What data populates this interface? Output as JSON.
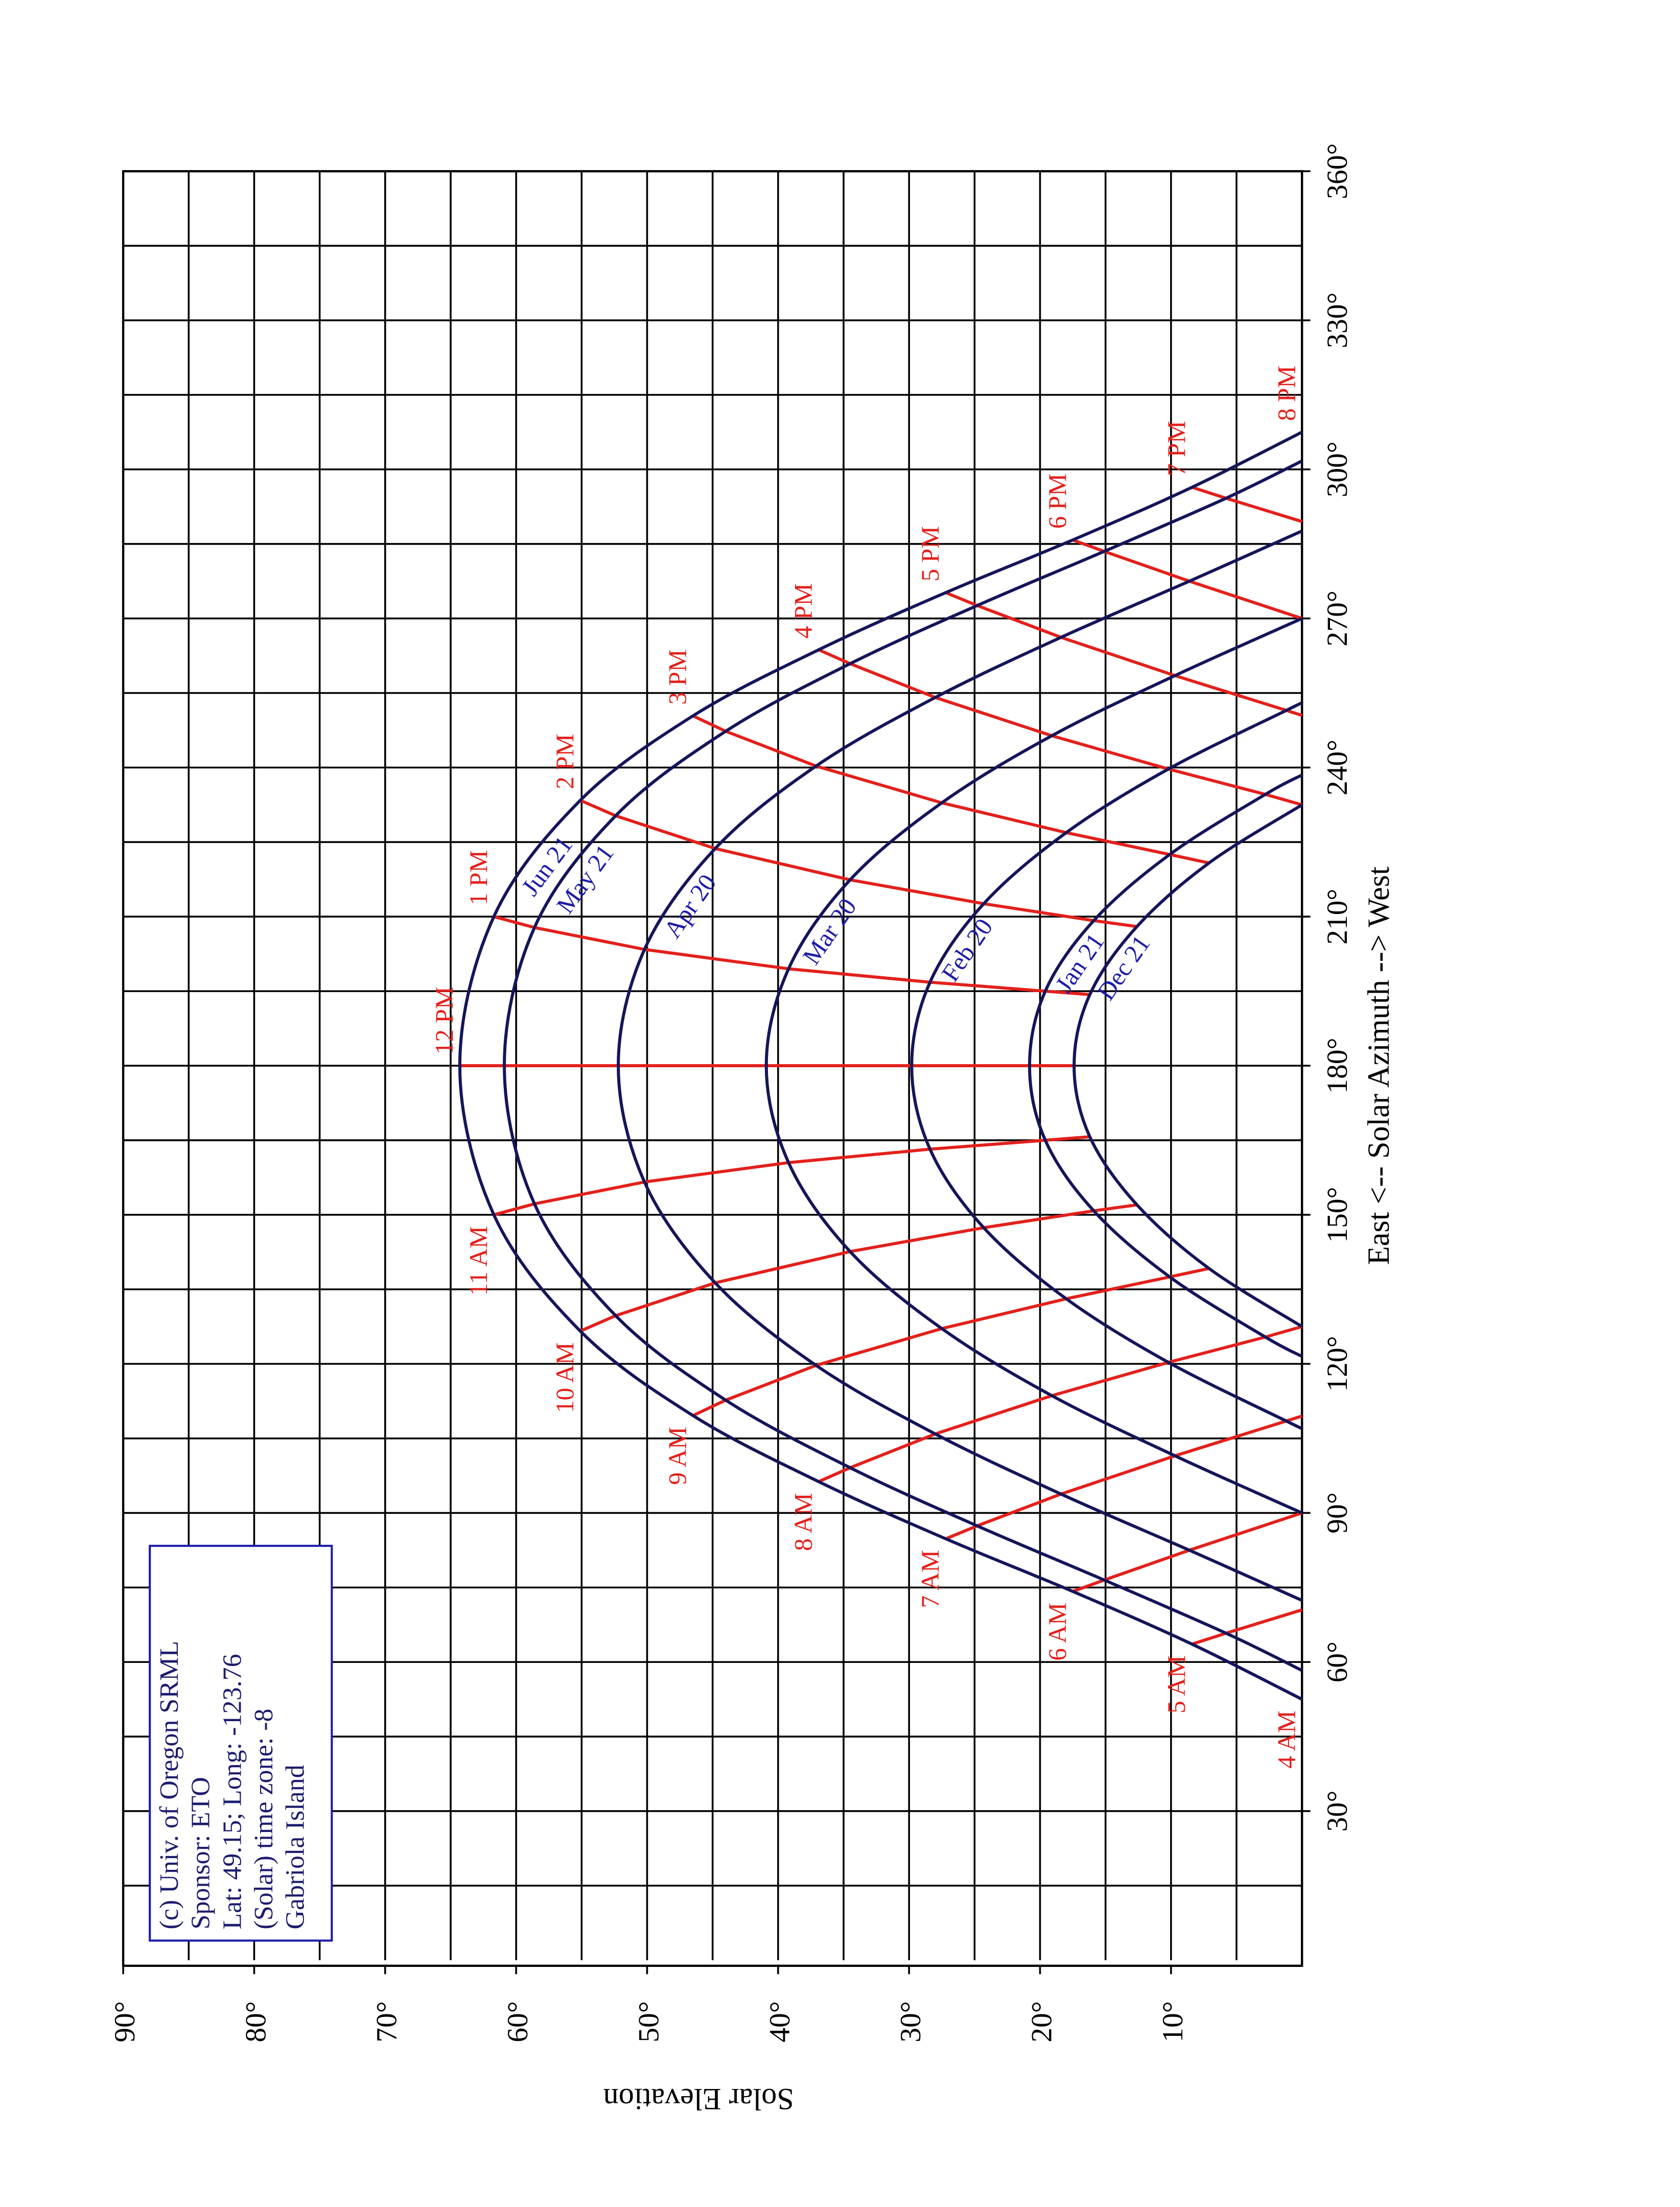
{
  "chart_data": {
    "type": "line",
    "x_label": "East <-- Solar Azimuth --> West",
    "y_label": "Solar Elevation",
    "xlim": [
      0,
      360
    ],
    "ylim": [
      0,
      90
    ],
    "xticks": [
      {
        "value": 30,
        "label": "30°"
      },
      {
        "value": 60,
        "label": "60°"
      },
      {
        "value": 90,
        "label": "90°"
      },
      {
        "value": 120,
        "label": "120°"
      },
      {
        "value": 150,
        "label": "150°"
      },
      {
        "value": 180,
        "label": "180°"
      },
      {
        "value": 210,
        "label": "210°"
      },
      {
        "value": 240,
        "label": "240°"
      },
      {
        "value": 270,
        "label": "270°"
      },
      {
        "value": 300,
        "label": "300°"
      },
      {
        "value": 330,
        "label": "330°"
      },
      {
        "value": 360,
        "label": "360°"
      }
    ],
    "yticks": [
      {
        "value": 10,
        "label": "10°"
      },
      {
        "value": 20,
        "label": "20°"
      },
      {
        "value": 30,
        "label": "30°"
      },
      {
        "value": 40,
        "label": "40°"
      },
      {
        "value": 50,
        "label": "50°"
      },
      {
        "value": 60,
        "label": "60°"
      },
      {
        "value": 70,
        "label": "70°"
      },
      {
        "value": 80,
        "label": "80°"
      },
      {
        "value": 90,
        "label": "90°"
      }
    ],
    "xminorticks": [
      15,
      30,
      45,
      60,
      75,
      90,
      105,
      120,
      135,
      150,
      165,
      180,
      195,
      210,
      225,
      240,
      255,
      270,
      285,
      300,
      315,
      330,
      345
    ],
    "yminorticks": [
      5,
      10,
      15,
      20,
      25,
      30,
      35,
      40,
      45,
      50,
      55,
      60,
      65,
      70,
      75,
      80,
      85
    ],
    "grid": true,
    "series": [
      {
        "name": "Jun 21",
        "color": "#15155a",
        "x": [
          52.5,
          63.6,
          74.2,
          84.8,
          96.3,
          109.6,
          126.6,
          150.0,
          180,
          210.0,
          233.4,
          250.4,
          263.7,
          275.2,
          285.8,
          296.4,
          307.5
        ],
        "y": [
          0,
          8.4,
          17.5,
          27.2,
          36.9,
          46.5,
          55.1,
          61.7,
          64.3,
          61.7,
          55.1,
          46.5,
          36.9,
          27.2,
          17.5,
          8.4,
          0
        ]
      },
      {
        "name": "May 21",
        "color": "#15155a",
        "x": [
          58.3,
          65.8,
          76.5,
          87.4,
          99.1,
          112.7,
          129.7,
          152.2,
          180,
          207.8,
          230.3,
          247.3,
          260.9,
          272.6,
          283.5,
          294.2,
          301.7
        ],
        "y": [
          0,
          5.8,
          15.1,
          24.8,
          34.5,
          44.0,
          52.4,
          58.6,
          60.9,
          58.6,
          52.4,
          44.0,
          34.5,
          24.8,
          15.1,
          5.8,
          0
        ]
      },
      {
        "name": "Apr 20",
        "color": "#15155a",
        "x": [
          72.4,
          82.5,
          93.8,
          105.9,
          119.7,
          136.3,
          156.6,
          180,
          203.4,
          223.7,
          240.3,
          254.1,
          266.2,
          277.5,
          287.6
        ],
        "y": [
          0,
          8.6,
          18.4,
          28.0,
          37.1,
          44.8,
          50.2,
          52.2,
          50.2,
          44.8,
          37.1,
          28.0,
          18.4,
          8.6,
          0
        ]
      },
      {
        "name": "Mar 20",
        "color": "#15155a",
        "x": [
          90,
          101.5,
          113.6,
          127.1,
          142.6,
          160.5,
          180,
          199.5,
          217.4,
          232.9,
          246.4,
          258.5,
          270
        ],
        "y": [
          0,
          9.7,
          19.1,
          27.5,
          34.5,
          39.2,
          40.9,
          39.2,
          34.5,
          27.5,
          19.1,
          9.7,
          0
        ]
      },
      {
        "name": "Feb 20",
        "color": "#15155a",
        "x": [
          107.0,
          108.5,
          120.3,
          133.1,
          147.4,
          163.2,
          180,
          196.8,
          212.6,
          226.9,
          239.7,
          251.5,
          253.0
        ],
        "y": [
          0,
          1.2,
          10.2,
          18.0,
          24.3,
          28.4,
          29.8,
          28.4,
          24.3,
          18.0,
          10.2,
          1.2,
          0
        ]
      },
      {
        "name": "Jan 21",
        "color": "#15155a",
        "x": [
          121.5,
          125.4,
          137.5,
          150.8,
          165.0,
          180,
          195.0,
          209.2,
          222.5,
          234.6,
          238.5
        ],
        "y": [
          0,
          2.8,
          10.1,
          15.9,
          19.6,
          20.8,
          19.6,
          15.9,
          10.1,
          2.8,
          0
        ]
      },
      {
        "name": "Dec 21",
        "color": "#15155a",
        "x": [
          127.5,
          139.2,
          152.0,
          165.7,
          180,
          194.3,
          208.0,
          220.8,
          232.5
        ],
        "y": [
          0,
          7.1,
          12.6,
          16.2,
          17.4,
          16.2,
          12.6,
          7.1,
          0
        ]
      }
    ],
    "hour_lines": [
      {
        "name": "4 AM",
        "color": "#e3201b",
        "x": [
          52.5
        ],
        "y": [
          0
        ]
      },
      {
        "name": "5 AM",
        "color": "#e3201b",
        "x": [
          63.6,
          65.8,
          70.5
        ],
        "y": [
          8.4,
          5.8,
          0
        ]
      },
      {
        "name": "6 AM",
        "color": "#e3201b",
        "x": [
          74.2,
          76.5,
          82.5,
          90
        ],
        "y": [
          17.5,
          15.1,
          8.6,
          0
        ]
      },
      {
        "name": "7 AM",
        "color": "#e3201b",
        "x": [
          84.8,
          87.4,
          93.8,
          101.5,
          108.5,
          109.5
        ],
        "y": [
          27.2,
          24.8,
          18.4,
          9.7,
          1.2,
          0
        ]
      },
      {
        "name": "8 AM",
        "color": "#e3201b",
        "x": [
          96.3,
          99.1,
          105.9,
          113.6,
          120.3,
          125.4,
          127.5
        ],
        "y": [
          36.9,
          34.5,
          28.0,
          19.1,
          10.2,
          2.8,
          0
        ]
      },
      {
        "name": "9 AM",
        "color": "#e3201b",
        "x": [
          109.6,
          112.7,
          119.7,
          127.1,
          133.1,
          137.5,
          139.2
        ],
        "y": [
          46.5,
          44.0,
          37.1,
          27.5,
          18.0,
          10.1,
          7.1
        ]
      },
      {
        "name": "10 AM",
        "color": "#e3201b",
        "x": [
          126.6,
          129.7,
          136.3,
          142.6,
          147.4,
          150.8,
          152.0
        ],
        "y": [
          55.1,
          52.4,
          44.8,
          34.5,
          24.3,
          15.9,
          12.6
        ]
      },
      {
        "name": "11 AM",
        "color": "#e3201b",
        "x": [
          150.0,
          152.2,
          156.6,
          160.5,
          163.2,
          165.0,
          165.7
        ],
        "y": [
          61.7,
          58.6,
          50.2,
          39.2,
          28.4,
          19.6,
          16.2
        ]
      },
      {
        "name": "12 PM",
        "color": "#e3201b",
        "x": [
          180,
          180,
          180,
          180,
          180,
          180,
          180
        ],
        "y": [
          64.3,
          60.9,
          52.2,
          40.9,
          29.8,
          20.8,
          17.4
        ]
      },
      {
        "name": "1 PM",
        "color": "#e3201b",
        "x": [
          210.0,
          207.8,
          203.4,
          199.5,
          196.8,
          195.0,
          194.3
        ],
        "y": [
          61.7,
          58.6,
          50.2,
          39.2,
          28.4,
          19.6,
          16.2
        ]
      },
      {
        "name": "2 PM",
        "color": "#e3201b",
        "x": [
          233.4,
          230.3,
          223.7,
          217.4,
          212.6,
          209.2,
          208.0
        ],
        "y": [
          55.1,
          52.4,
          44.8,
          34.5,
          24.3,
          15.9,
          12.6
        ]
      },
      {
        "name": "3 PM",
        "color": "#e3201b",
        "x": [
          250.4,
          247.3,
          240.3,
          232.9,
          226.9,
          222.5,
          220.8
        ],
        "y": [
          46.5,
          44.0,
          37.1,
          27.5,
          18.0,
          10.1,
          7.1
        ]
      },
      {
        "name": "4 PM",
        "color": "#e3201b",
        "x": [
          263.7,
          260.9,
          254.1,
          246.4,
          239.7,
          234.6,
          232.5
        ],
        "y": [
          36.9,
          34.5,
          28.0,
          19.1,
          10.2,
          2.8,
          0
        ]
      },
      {
        "name": "5 PM",
        "color": "#e3201b",
        "x": [
          275.2,
          272.6,
          266.2,
          258.5,
          251.5,
          250.5
        ],
        "y": [
          27.2,
          24.8,
          18.4,
          9.7,
          1.2,
          0
        ]
      },
      {
        "name": "6 PM",
        "color": "#e3201b",
        "x": [
          285.8,
          283.5,
          277.5,
          270
        ],
        "y": [
          17.5,
          15.1,
          8.6,
          0
        ]
      },
      {
        "name": "7 PM",
        "color": "#e3201b",
        "x": [
          296.4,
          294.2,
          289.5
        ],
        "y": [
          8.4,
          5.8,
          0
        ]
      },
      {
        "name": "8 PM",
        "color": "#e3201b",
        "x": [
          307.5
        ],
        "y": [
          0
        ]
      }
    ],
    "info_box": [
      "(c) Univ. of Oregon SRML",
      "Sponsor: ETO",
      "Lat: 49.15; Long: -123.76",
      "(Solar) time zone: -8",
      "Gabriola Island"
    ]
  }
}
